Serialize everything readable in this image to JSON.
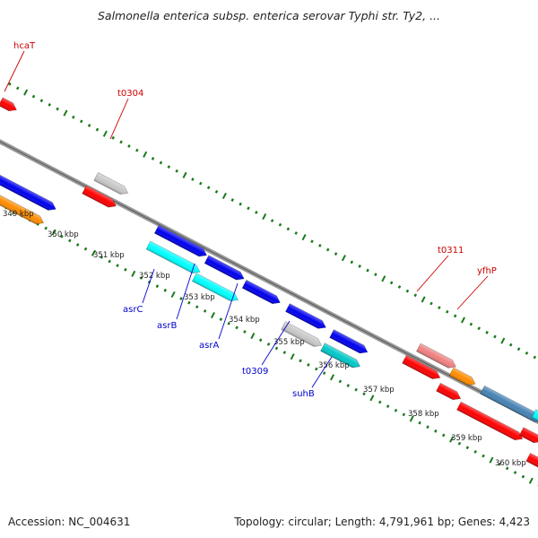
{
  "title": "Salmonella enterica subsp. enterica serovar Typhi str. Ty2, ...",
  "footer": {
    "accession": "Accession: NC_004631",
    "topology": "Topology: circular; Length: 4,791,961 bp; Genes: 4,423"
  },
  "colors": {
    "backbone": "#8c8c8c",
    "ticks": "#1a7a1a",
    "label_top": "#cc0000",
    "label_bottom": "#0000cc"
  },
  "kbp_labels": [
    "349 kbp",
    "350 kbp",
    "351 kbp",
    "352 kbp",
    "353 kbp",
    "354 kbp",
    "355 kbp",
    "356 kbp",
    "357 kbp",
    "358 kbp",
    "359 kbp",
    "360 kbp"
  ],
  "gene_labels": [
    {
      "text": "hcaT",
      "side": "top"
    },
    {
      "text": "t0304",
      "side": "top"
    },
    {
      "text": "t0311",
      "side": "top"
    },
    {
      "text": "yfhP",
      "side": "top"
    },
    {
      "text": "asrC",
      "side": "bottom"
    },
    {
      "text": "asrB",
      "side": "bottom"
    },
    {
      "text": "asrA",
      "side": "bottom"
    },
    {
      "text": "t0309",
      "side": "bottom"
    },
    {
      "text": "suhB",
      "side": "bottom"
    }
  ],
  "features": [
    {
      "color": "#ff0000",
      "strand": "+"
    },
    {
      "color": "#0000ee",
      "strand": "+"
    },
    {
      "color": "#ff8c00",
      "strand": "+"
    },
    {
      "color": "#c8c8c8",
      "strand": "+"
    },
    {
      "color": "#ff0000",
      "strand": "+"
    },
    {
      "color": "#0000ee",
      "strand": "+"
    },
    {
      "color": "#00ffff",
      "strand": "+"
    },
    {
      "color": "#0000ee",
      "strand": "+"
    },
    {
      "color": "#00ffff",
      "strand": "+"
    },
    {
      "color": "#0000ee",
      "strand": "+"
    },
    {
      "color": "#0000ee",
      "strand": "+"
    },
    {
      "color": "#c8c8c8",
      "strand": "+"
    },
    {
      "color": "#0000ee",
      "strand": "+"
    },
    {
      "color": "#00c8c8",
      "strand": "+"
    },
    {
      "color": "#f08080",
      "strand": "+"
    },
    {
      "color": "#ff0000",
      "strand": "+"
    },
    {
      "color": "#ff8c00",
      "strand": "+"
    },
    {
      "color": "#ff0000",
      "strand": "+"
    },
    {
      "color": "#4682b4",
      "strand": "+"
    },
    {
      "color": "#ff0000",
      "strand": "+"
    },
    {
      "color": "#00ffff",
      "strand": "+"
    },
    {
      "color": "#ff0000",
      "strand": "+"
    },
    {
      "color": "#ff0000",
      "strand": "+"
    }
  ]
}
